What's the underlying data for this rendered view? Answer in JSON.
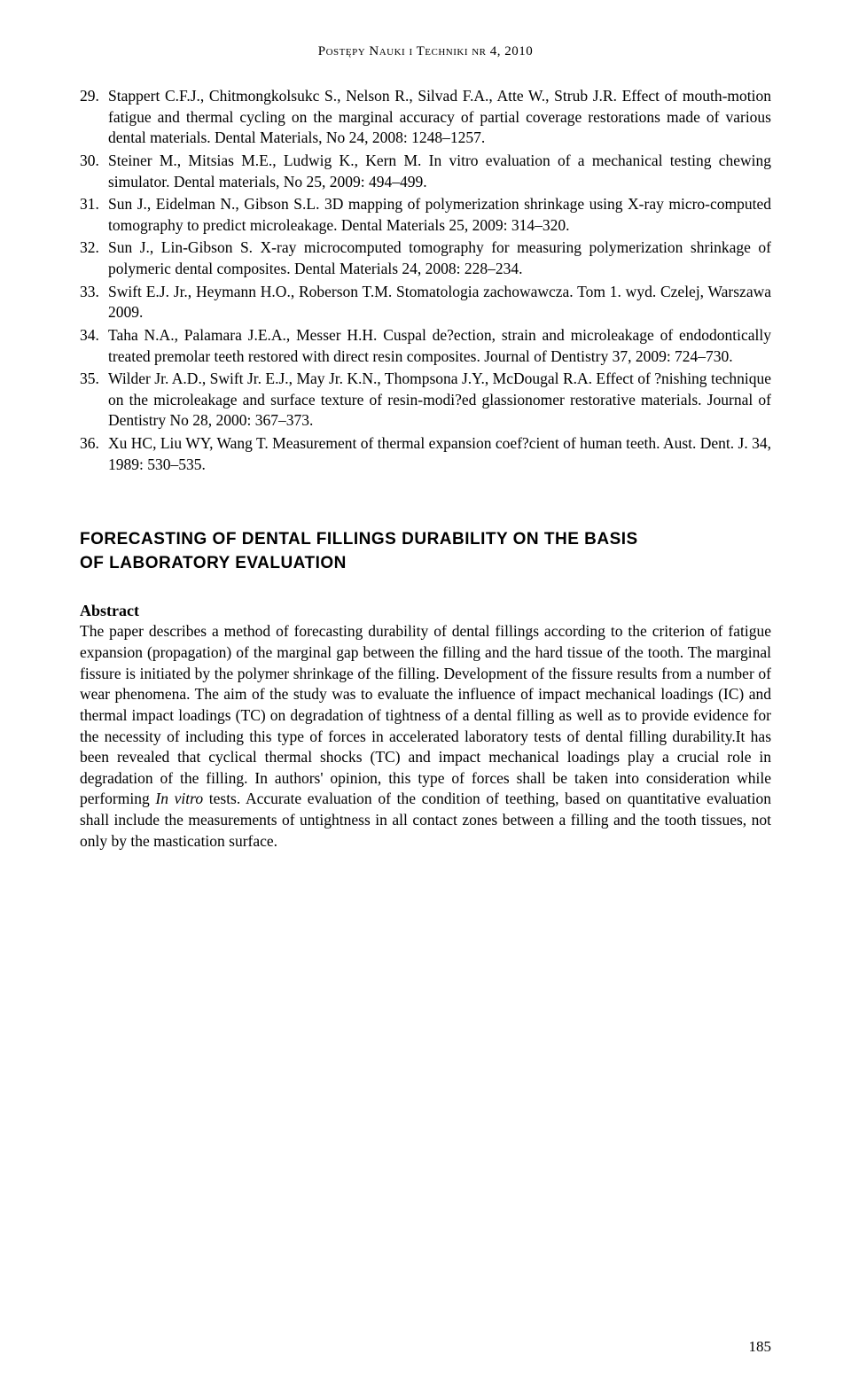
{
  "header": "Postępy Nauki i Techniki nr 4, 2010",
  "references": [
    {
      "num": "29.",
      "text": "Stappert C.F.J., Chitmongkolsukc S., Nelson R., Silvad F.A., Atte W., Strub J.R. Effect of mouth-motion fatigue and thermal cycling on the marginal accuracy of partial coverage restorations made of various dental materials. Dental Materials, No 24, 2008: 1248–1257."
    },
    {
      "num": "30.",
      "text": "Steiner M., Mitsias M.E., Ludwig K., Kern M. In vitro evaluation of a mechanical testing chewing simulator. Dental materials, No 25, 2009: 494–499."
    },
    {
      "num": "31.",
      "text": "Sun J., Eidelman N., Gibson S.L. 3D mapping of polymerization shrinkage using X-ray micro-computed tomography to predict microleakage. Dental Materials 25, 2009: 314–320."
    },
    {
      "num": "32.",
      "text": "Sun J., Lin-Gibson S. X-ray microcomputed tomography for measuring polymerization shrinkage of polymeric dental composites. Dental Materials 24, 2008: 228–234."
    },
    {
      "num": "33.",
      "text": "Swift E.J. Jr., Heymann H.O., Roberson T.M. Stomatologia zachowawcza. Tom 1. wyd. Czelej, Warszawa 2009."
    },
    {
      "num": "34.",
      "text": "Taha N.A., Palamara J.E.A., Messer H.H. Cuspal de?ection, strain and microleakage of endodontically treated premolar teeth restored with direct resin composites. Journal of Dentistry 37, 2009: 724–730."
    },
    {
      "num": "35.",
      "text": "Wilder Jr. A.D., Swift Jr. E.J., May Jr. K.N., Thompsona J.Y., McDougal R.A. Effect of ?nishing technique on the microleakage and surface texture of resin-modi?ed glassionomer restorative materials. Journal of Dentistry No 28, 2000: 367–373."
    },
    {
      "num": "36.",
      "text": "Xu HC, Liu WY, Wang T. Measurement of thermal expansion coef?cient of human teeth. Aust. Dent. J. 34, 1989: 530–535."
    }
  ],
  "section_title_line1": "FORECASTING OF DENTAL FILLINGS DURABILITY ON THE BASIS",
  "section_title_line2": "OF LABORATORY EVALUATION",
  "abstract_label": "Abstract",
  "abstract_text_part1": "The paper describes a method of forecasting durability of dental fillings according to the criterion of fatigue expansion (propagation) of the marginal gap between the filling and the hard tissue of the tooth. The marginal fissure is initiated by the polymer shrinkage of the filling. Development of the fissure results from a number of wear phenomena. The aim of the study was to evaluate the influence of impact mechanical loadings (IC) and thermal impact loadings (TC) on degradation of tightness of a dental filling as well as to provide evidence for the necessity of including this type of forces in accelerated laboratory tests of dental filling durability.It has been revealed that cyclical thermal shocks (TC) and impact mechanical loadings play a crucial role in degradation of the filling. In authors' opinion, this type of forces shall be taken into consideration while performing ",
  "abstract_text_italic": "In vitro",
  "abstract_text_part2": " tests. Accurate evaluation of the condition of teething, based on quantitative evaluation shall include the measurements of untightness in all contact zones between a filling and the tooth tissues, not only by the mastication surface.",
  "page_number": "185"
}
